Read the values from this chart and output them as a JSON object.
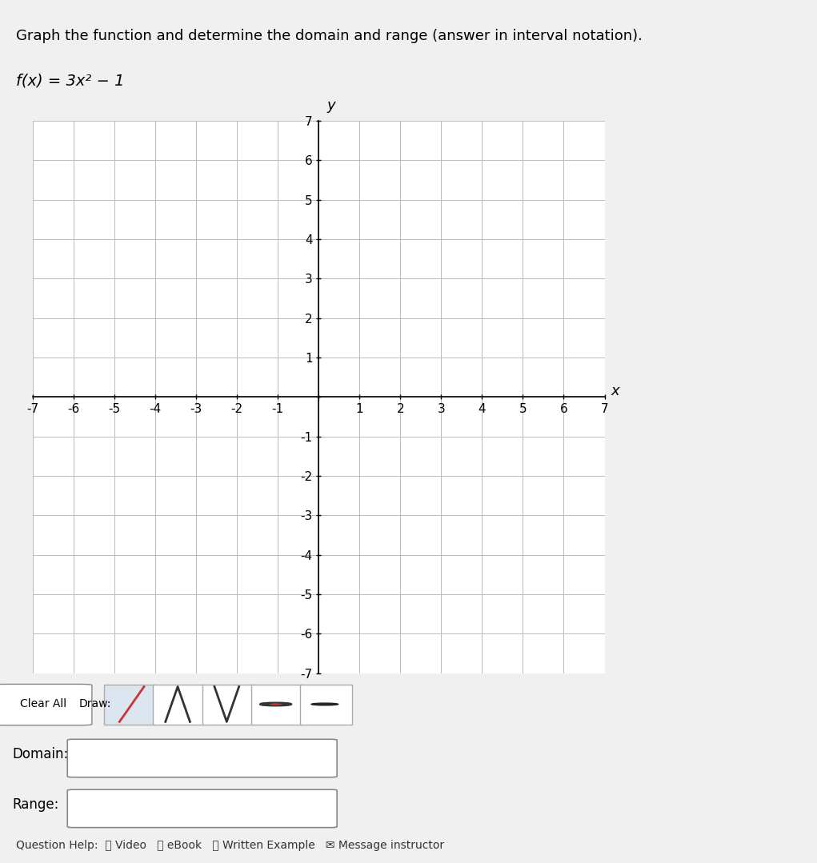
{
  "title_text": "Graph the function and determine the domain and range (answer in interval notation).",
  "function_label": "f(x) = 3x² − 1",
  "x_min": -7,
  "x_max": 7,
  "y_min": -7,
  "y_max": 7,
  "x_label": "x",
  "y_label": "y",
  "grid_color": "#bbbbbb",
  "axis_color": "#000000",
  "bg_color": "#f5f5f5",
  "outer_bg": "#e8e8e8",
  "domain_label": "Domain:",
  "range_label": "Range:",
  "bottom_help": "Question Help:  ⧨ Video  ⧨ eBook  ⧨ Written Example  ✉ Message instructor",
  "draw_button_label": "Draw:",
  "clear_all_label": "Clear All",
  "tick_fontsize": 11,
  "label_fontsize": 13,
  "title_fontsize": 13,
  "function_fontsize": 14
}
